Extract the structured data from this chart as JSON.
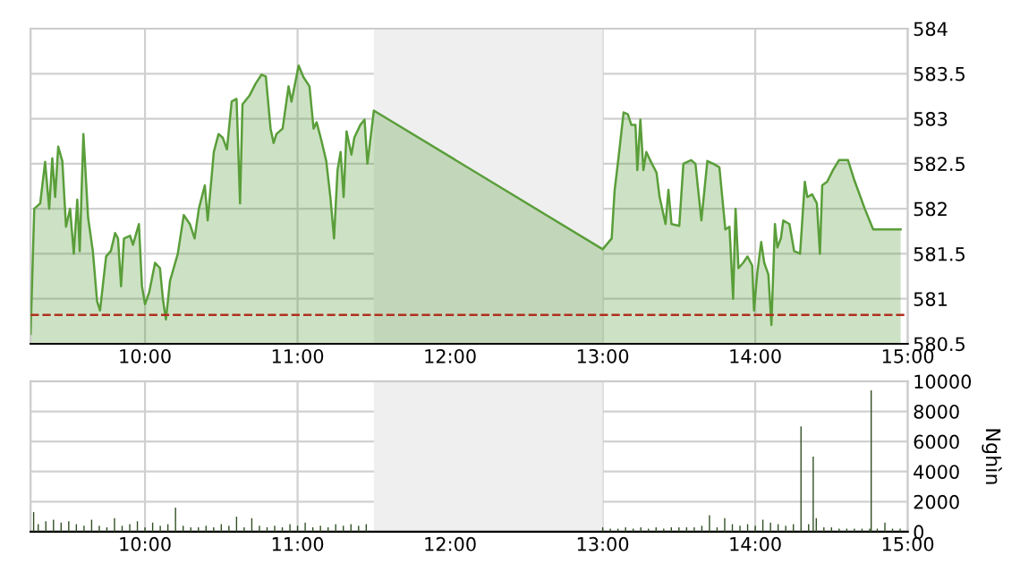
{
  "chart_data": [
    {
      "type": "area",
      "x": [
        9.25,
        9.274,
        9.313,
        9.345,
        9.372,
        9.392,
        9.411,
        9.431,
        9.458,
        9.482,
        9.509,
        9.533,
        9.556,
        9.572,
        9.596,
        9.627,
        9.658,
        9.686,
        9.705,
        9.745,
        9.776,
        9.804,
        9.823,
        9.843,
        9.862,
        9.902,
        9.921,
        9.96,
        9.98,
        10.0,
        10.027,
        10.066,
        10.098,
        10.117,
        10.137,
        10.164,
        10.215,
        10.254,
        10.294,
        10.325,
        10.353,
        10.392,
        10.411,
        10.451,
        10.482,
        10.509,
        10.537,
        10.568,
        10.6,
        10.623,
        10.639,
        10.686,
        10.725,
        10.764,
        10.792,
        10.823,
        10.843,
        10.862,
        10.902,
        10.941,
        10.96,
        11.007,
        11.039,
        11.078,
        11.105,
        11.125,
        11.156,
        11.188,
        11.215,
        11.239,
        11.262,
        11.282,
        11.302,
        11.321,
        11.353,
        11.372,
        11.411,
        11.439,
        11.458,
        11.5,
        13.0,
        13.059,
        13.078,
        13.106,
        13.137,
        13.165,
        13.188,
        13.215,
        13.227,
        13.247,
        13.267,
        13.286,
        13.314,
        13.353,
        13.373,
        13.412,
        13.431,
        13.451,
        13.502,
        13.529,
        13.58,
        13.608,
        13.647,
        13.686,
        13.725,
        13.765,
        13.804,
        13.831,
        13.855,
        13.871,
        13.89,
        13.921,
        13.949,
        13.98,
        13.992,
        14.012,
        14.039,
        14.059,
        14.086,
        14.106,
        14.129,
        14.145,
        14.168,
        14.184,
        14.224,
        14.255,
        14.294,
        14.325,
        14.341,
        14.373,
        14.404,
        14.424,
        14.439,
        14.471,
        14.51,
        14.549,
        14.608,
        14.647,
        14.718,
        14.773,
        14.882,
        14.953
      ],
      "series": [
        {
          "color": "#5a9e3a",
          "values": [
            580.61,
            582.0,
            582.06,
            582.52,
            582.0,
            582.56,
            582.13,
            582.69,
            582.53,
            581.8,
            582.0,
            581.5,
            582.1,
            581.53,
            582.83,
            581.9,
            581.53,
            580.97,
            580.87,
            581.47,
            581.53,
            581.73,
            581.67,
            581.14,
            581.67,
            581.7,
            581.6,
            581.83,
            581.14,
            580.94,
            581.07,
            581.4,
            581.34,
            581.0,
            580.77,
            581.2,
            581.5,
            581.93,
            581.83,
            581.67,
            582.0,
            582.26,
            581.87,
            582.63,
            582.83,
            582.79,
            582.66,
            583.19,
            583.22,
            582.06,
            583.16,
            583.26,
            583.39,
            583.49,
            583.47,
            582.89,
            582.73,
            582.83,
            582.89,
            583.36,
            583.19,
            583.59,
            583.46,
            583.36,
            582.89,
            582.96,
            582.76,
            582.53,
            582.13,
            581.67,
            582.43,
            582.63,
            582.13,
            582.86,
            582.6,
            582.79,
            582.93,
            582.99,
            582.5,
            583.09,
            581.55,
            581.67,
            582.2,
            582.6,
            583.07,
            583.05,
            582.93,
            582.93,
            582.43,
            582.99,
            582.43,
            582.63,
            582.53,
            582.4,
            582.13,
            581.83,
            582.21,
            581.83,
            581.81,
            582.5,
            582.54,
            582.5,
            581.87,
            582.53,
            582.5,
            582.46,
            581.77,
            581.8,
            581.0,
            582.0,
            581.34,
            581.4,
            581.47,
            581.37,
            580.87,
            581.27,
            581.63,
            581.4,
            581.27,
            580.71,
            581.83,
            581.57,
            581.67,
            581.87,
            581.83,
            581.53,
            581.5,
            582.3,
            582.13,
            582.16,
            582.06,
            581.5,
            582.26,
            582.3,
            582.43,
            582.54,
            582.54,
            582.33,
            582.0,
            581.77,
            581.77,
            581.77
          ]
        }
      ],
      "xlim": [
        9.25,
        15.0
      ],
      "xticks": [
        {
          "value": 10,
          "label": "10:00"
        },
        {
          "value": 11,
          "label": "11:00"
        },
        {
          "value": 12,
          "label": "12:00"
        },
        {
          "value": 13,
          "label": "13:00"
        },
        {
          "value": 14,
          "label": "14:00"
        },
        {
          "value": 15,
          "label": "15:00"
        }
      ],
      "ylim": [
        580.5,
        584
      ],
      "yticks": [
        580.5,
        581,
        581.5,
        582,
        582.5,
        583,
        583.5,
        584
      ],
      "grid": true,
      "ref_lines": [
        {
          "axis": "y",
          "value": 580.82,
          "color": "#b03020",
          "line_style": "dashed"
        }
      ],
      "bands": [
        {
          "axis": "x",
          "from": 11.5,
          "to": 13.0,
          "color": "#efefef"
        }
      ]
    },
    {
      "type": "bar",
      "x": [
        9.27,
        9.3,
        9.35,
        9.4,
        9.45,
        9.5,
        9.55,
        9.6,
        9.65,
        9.7,
        9.75,
        9.8,
        9.85,
        9.9,
        9.95,
        10.0,
        10.05,
        10.1,
        10.15,
        10.2,
        10.25,
        10.3,
        10.35,
        10.4,
        10.45,
        10.5,
        10.55,
        10.6,
        10.65,
        10.7,
        10.75,
        10.8,
        10.85,
        10.9,
        10.95,
        11.0,
        11.05,
        11.1,
        11.15,
        11.2,
        11.25,
        11.3,
        11.35,
        11.4,
        11.45,
        13.0,
        13.05,
        13.1,
        13.15,
        13.2,
        13.25,
        13.3,
        13.35,
        13.4,
        13.45,
        13.5,
        13.55,
        13.6,
        13.65,
        13.7,
        13.75,
        13.8,
        13.85,
        13.9,
        13.95,
        14.0,
        14.05,
        14.1,
        14.15,
        14.2,
        14.25,
        14.3,
        14.35,
        14.38,
        14.4,
        14.45,
        14.5,
        14.55,
        14.6,
        14.65,
        14.7,
        14.75,
        14.76,
        14.8,
        14.85,
        14.9,
        14.95
      ],
      "series": [
        {
          "color": "#2e4d1f",
          "values": [
            1300,
            500,
            700,
            800,
            600,
            700,
            500,
            400,
            800,
            400,
            300,
            900,
            400,
            500,
            700,
            300,
            600,
            400,
            500,
            1600,
            400,
            300,
            300,
            400,
            300,
            500,
            400,
            1000,
            300,
            900,
            400,
            300,
            400,
            300,
            500,
            400,
            600,
            300,
            400,
            300,
            500,
            400,
            500,
            400,
            500,
            300,
            200,
            200,
            300,
            200,
            300,
            200,
            300,
            200,
            300,
            300,
            300,
            300,
            400,
            1100,
            300,
            900,
            500,
            400,
            500,
            400,
            800,
            600,
            500,
            400,
            500,
            7000,
            500,
            5000,
            900,
            300,
            300,
            200,
            200,
            200,
            200,
            200,
            9400,
            200,
            600,
            200,
            200
          ]
        }
      ],
      "xlim": [
        9.25,
        15.0
      ],
      "xticks": [
        {
          "value": 10,
          "label": "10:00"
        },
        {
          "value": 11,
          "label": "11:00"
        },
        {
          "value": 12,
          "label": "12:00"
        },
        {
          "value": 13,
          "label": "13:00"
        },
        {
          "value": 14,
          "label": "14:00"
        },
        {
          "value": 15,
          "label": "15:00"
        }
      ],
      "ylim": [
        0,
        10000
      ],
      "yticks": [
        0,
        2000,
        4000,
        6000,
        8000,
        10000
      ],
      "ylabel": "Nghìn",
      "grid": true,
      "bands": [
        {
          "axis": "x",
          "from": 11.5,
          "to": 13.0,
          "color": "#efefef"
        }
      ]
    }
  ]
}
